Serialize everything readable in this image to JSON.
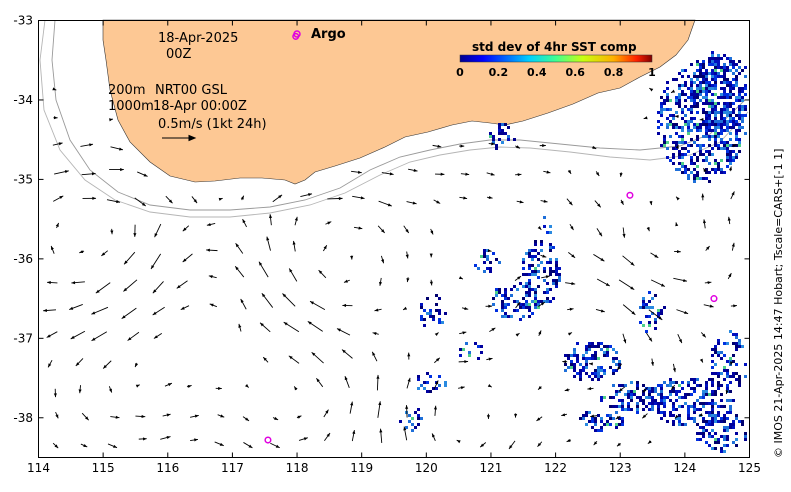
{
  "map": {
    "date_line1": "18-Apr-2025",
    "date_line2": "00Z",
    "legend_argo": "Argo",
    "line_200m": "200m",
    "line_1000m": "1000m",
    "model_label": "NRT00 GSL",
    "model_time": "18-Apr 00:00Z",
    "scale_label": "0.5m/s (1kt 24h)",
    "credit": "© IMOS 21-Apr-2025 14:47 Hobart; Tscale=CARS+[-1 1]",
    "colorbar": {
      "title": "std dev of 4hr SST comp",
      "ticks": [
        "0",
        "0.2",
        "0.4",
        "0.6",
        "0.8",
        "1"
      ]
    },
    "x_ticks": [
      "114",
      "115",
      "116",
      "117",
      "118",
      "119",
      "120",
      "121",
      "122",
      "123",
      "124",
      "125"
    ],
    "y_ticks": [
      "-33",
      "-34",
      "-35",
      "-36",
      "-37",
      "-38"
    ],
    "x_range": [
      114,
      125
    ],
    "y_range": [
      -38.5,
      -33
    ],
    "argo_floats": [
      {
        "lon": 117.98,
        "lat": -33.2
      },
      {
        "lon": 123.15,
        "lat": -35.2
      },
      {
        "lon": 124.45,
        "lat": -36.5
      },
      {
        "lon": 117.55,
        "lat": -38.28
      }
    ],
    "colors": {
      "land": "#fdc894",
      "argo": "#e000e0",
      "sst_low": "#00008f",
      "sst_mid": "#1e6fd9",
      "sst_high": "#4fd08a",
      "contour": "#9a9a9a"
    }
  }
}
